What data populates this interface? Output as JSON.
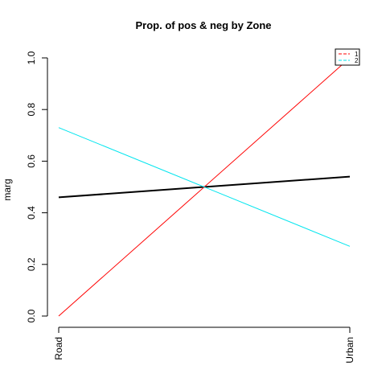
{
  "chart_data": {
    "type": "line",
    "title": "Prop. of pos & neg by Zone",
    "xlabel": "",
    "ylabel": "marg",
    "categories": [
      "Road",
      "Urban"
    ],
    "ylim": [
      0,
      1
    ],
    "yticks": [
      "0.0",
      "0.2",
      "0.4",
      "0.6",
      "0.8",
      "1.0"
    ],
    "grid": false,
    "legend_position": "top-right",
    "series": [
      {
        "values": [
          0.46,
          0.54
        ],
        "color": "#000000",
        "style": "solid"
      },
      {
        "name": "1",
        "values": [
          0.0,
          1.0
        ],
        "color": "#ff0000",
        "style": "dashed-in-legend"
      },
      {
        "name": "2",
        "values": [
          0.73,
          0.27
        ],
        "color": "#00e5ee",
        "style": "dashed-in-legend"
      }
    ]
  }
}
